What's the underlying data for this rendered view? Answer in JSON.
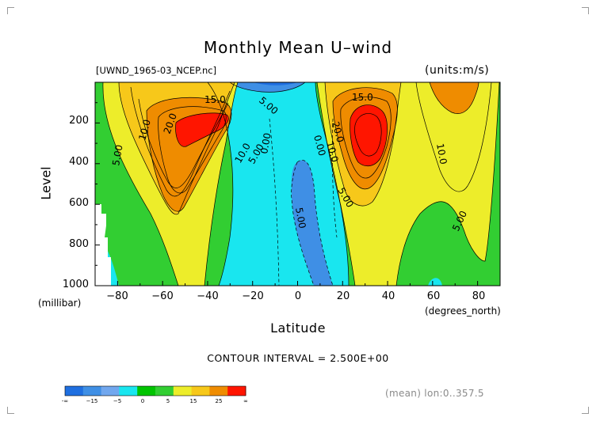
{
  "title": "Monthly Mean U–wind",
  "dataset_label": "[UWND_1965-03_NCEP.nc]",
  "units_label": "(units:m/s)",
  "y_axis": {
    "label": "Level",
    "unit": "(millibar)",
    "ticks": [
      "200",
      "400",
      "600",
      "800",
      "1000"
    ]
  },
  "x_axis": {
    "label": "Latitude",
    "unit": "(degrees_north)",
    "ticks": [
      "−80",
      "−60",
      "−40",
      "−20",
      "0",
      "20",
      "40",
      "60",
      "80"
    ]
  },
  "contour_interval_text": "CONTOUR INTERVAL = 2.500E+00",
  "mean_note": "(mean) lon:0..357.5",
  "colorbar": {
    "colors": [
      "#1f6fe0",
      "#3f8fe5",
      "#71a7ee",
      "#19e6ef",
      "#00c400",
      "#32ce32",
      "#eded2a",
      "#f7c81a",
      "#ef8c00",
      "#ff1500"
    ],
    "labels": [
      "-∞",
      "−15",
      "−5",
      "0",
      "5",
      "15",
      "25",
      "∞"
    ]
  },
  "chart_data": {
    "type": "heatmap",
    "title": "Monthly Mean U–wind",
    "variable": "U-wind",
    "units": "m/s",
    "xlabel": "Latitude",
    "ylabel": "Level",
    "xlim": [
      -90,
      90
    ],
    "ylim": [
      1000,
      0
    ],
    "y_reversed": true,
    "contour_interval": 2.5,
    "contour_labels": [
      "5.00",
      "10.0",
      "15.0",
      "20.0",
      "0.00",
      "-5.00"
    ],
    "jets": [
      {
        "name": "southern subtropical jet",
        "lat": -45,
        "level": 250,
        "max": 25
      },
      {
        "name": "northern subtropical jet",
        "lat": 30,
        "level": 200,
        "max": 25
      },
      {
        "name": "northern high-latitude jet",
        "lat": 75,
        "level": 150,
        "max": 15
      }
    ],
    "easterlies": [
      {
        "lat": 5,
        "level_range": [
          350,
          1000
        ],
        "min": -5
      }
    ],
    "colorbar_bounds": [
      "-∞",
      -15,
      -5,
      0,
      5,
      15,
      25,
      "∞"
    ]
  }
}
